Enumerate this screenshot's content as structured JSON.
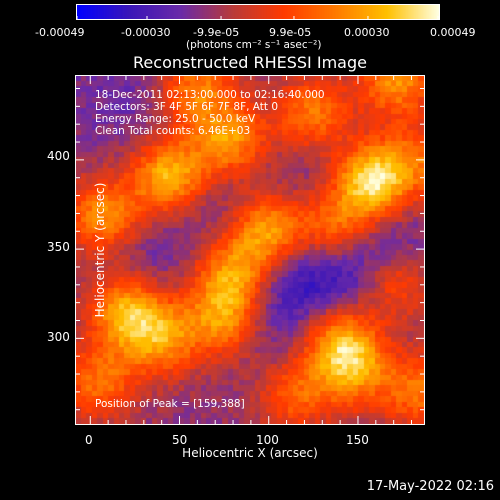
{
  "chart_data": {
    "type": "heatmap",
    "title": "Reconstructed RHESSI Image",
    "xlabel": "Heliocentric X (arcsec)",
    "ylabel": "Heliocentric Y (arcsec)",
    "xlim": [
      -8,
      187
    ],
    "ylim": [
      252,
      447
    ],
    "x_ticks": [
      0,
      50,
      100,
      150
    ],
    "y_ticks": [
      300,
      350,
      400
    ],
    "colorbar": {
      "range": [
        -0.00049,
        0.00049
      ],
      "tick_labels": [
        "-0.00049",
        "-0.00030",
        "-9.9e-05",
        "9.9e-05",
        "0.00030",
        "0.00049"
      ],
      "unit_label": "(photons cm⁻² s⁻¹ asec⁻²)",
      "colors": [
        "#0000ff",
        "#3a16b8",
        "#6a2aa8",
        "#b83a3a",
        "#ff3a00",
        "#ff7a00",
        "#ffc000",
        "#ffffe0"
      ]
    },
    "annotations": {
      "time": "18-Dec-2011 02:13:00.000 to 02:16:40.000",
      "detectors": "Detectors: 3F 4F 5F 6F 7F 8F, Att 0",
      "energy": "Energy Range: 25.0 - 50.0 keV",
      "clean": "Clean     Total counts: 6.46E+03",
      "peak": "Position of Peak = [159,388]"
    },
    "peak_position": [
      159,
      388
    ],
    "hotspots": [
      {
        "x": 158,
        "y": 388,
        "value": 0.00049
      },
      {
        "x": 45,
        "y": 390,
        "value": 0.0004
      },
      {
        "x": 78,
        "y": 410,
        "value": 0.00032
      },
      {
        "x": 8,
        "y": 368,
        "value": 0.0003
      },
      {
        "x": 100,
        "y": 360,
        "value": 0.00036
      },
      {
        "x": 125,
        "y": 425,
        "value": 0.00026
      },
      {
        "x": 172,
        "y": 445,
        "value": 0.0003
      },
      {
        "x": 138,
        "y": 362,
        "value": 0.00028
      },
      {
        "x": 80,
        "y": 335,
        "value": 0.0003
      },
      {
        "x": 75,
        "y": 310,
        "value": 0.00028
      },
      {
        "x": 20,
        "y": 315,
        "value": 0.00034
      },
      {
        "x": 40,
        "y": 300,
        "value": 0.00028
      },
      {
        "x": 5,
        "y": 275,
        "value": 0.00022
      },
      {
        "x": 140,
        "y": 300,
        "value": 0.0003
      },
      {
        "x": 148,
        "y": 282,
        "value": 0.00026
      },
      {
        "x": 115,
        "y": 268,
        "value": 0.00018
      },
      {
        "x": 185,
        "y": 270,
        "value": 0.00022
      },
      {
        "x": 170,
        "y": 330,
        "value": 0.00022
      },
      {
        "x": 60,
        "y": 440,
        "value": 0.00024
      },
      {
        "x": 185,
        "y": 400,
        "value": 0.00016
      }
    ],
    "coldspots": [
      {
        "x": 120,
        "y": 335,
        "value": -0.0004
      },
      {
        "x": 150,
        "y": 330,
        "value": -0.00032
      },
      {
        "x": 100,
        "y": 310,
        "value": -0.0003
      },
      {
        "x": 70,
        "y": 380,
        "value": -0.0003
      },
      {
        "x": 30,
        "y": 345,
        "value": -0.00028
      },
      {
        "x": 160,
        "y": 350,
        "value": -0.00036
      },
      {
        "x": 20,
        "y": 435,
        "value": -0.00026
      },
      {
        "x": 130,
        "y": 395,
        "value": -0.00026
      }
    ]
  },
  "footer": {
    "timestamp": "17-May-2022 02:16"
  }
}
